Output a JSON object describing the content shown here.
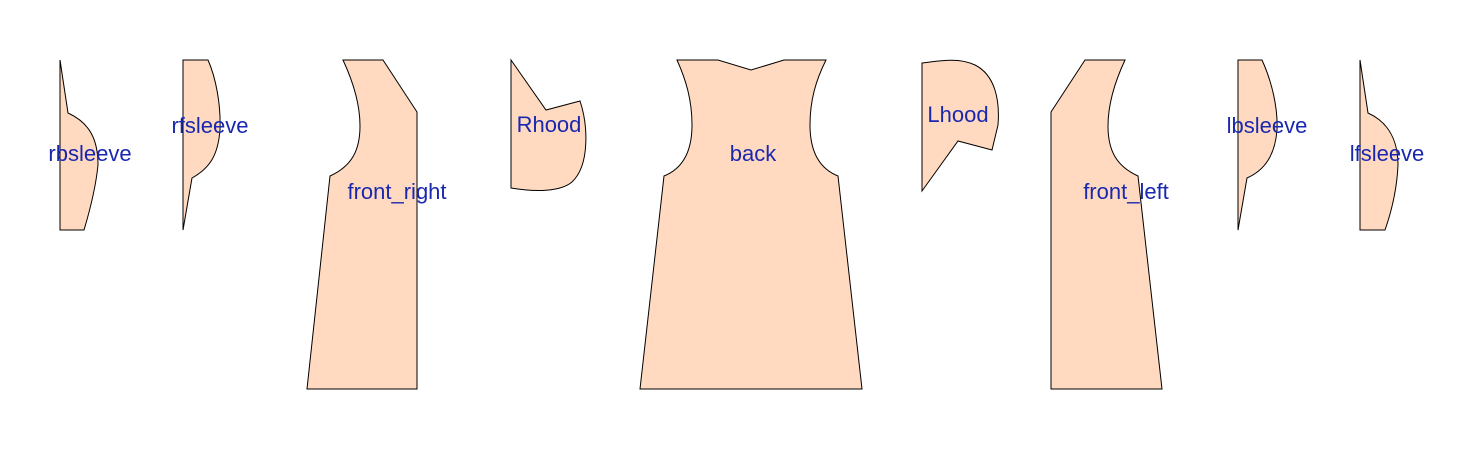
{
  "diagram": {
    "colors": {
      "piece_fill": "#FFDAC1",
      "piece_stroke": "#000000",
      "label": "#1A28B0"
    },
    "pieces": [
      {
        "id": "rbsleeve",
        "label": "rbsleeve"
      },
      {
        "id": "rfsleeve",
        "label": "rfsleeve"
      },
      {
        "id": "front_right",
        "label": "front_right"
      },
      {
        "id": "rhood",
        "label": "Rhood"
      },
      {
        "id": "back",
        "label": "back"
      },
      {
        "id": "lhood",
        "label": "Lhood"
      },
      {
        "id": "front_left",
        "label": "front_left"
      },
      {
        "id": "lbsleeve",
        "label": "lbsleeve"
      },
      {
        "id": "lfsleeve",
        "label": "lfsleeve"
      }
    ]
  }
}
